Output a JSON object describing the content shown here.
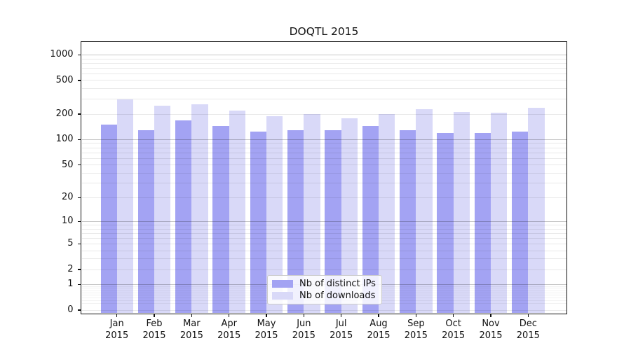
{
  "chart_data": {
    "type": "bar",
    "title": "DOQTL 2015",
    "categories": [
      "Jan",
      "Feb",
      "Mar",
      "Apr",
      "May",
      "Jun",
      "Jul",
      "Aug",
      "Sep",
      "Oct",
      "Nov",
      "Dec"
    ],
    "category_year": "2015",
    "series": [
      {
        "name": "Nb of distinct IPs",
        "color": "#a3a3f3",
        "values": [
          150,
          130,
          168,
          145,
          125,
          130,
          130,
          145,
          130,
          120,
          119,
          125
        ]
      },
      {
        "name": "Nb of downloads",
        "color": "#d9d9f8",
        "values": [
          300,
          250,
          260,
          220,
          190,
          200,
          178,
          200,
          230,
          212,
          208,
          237
        ]
      }
    ],
    "yscale": "log1p",
    "ylim": [
      0,
      1400
    ],
    "yticks": [
      0,
      1,
      2,
      5,
      10,
      20,
      50,
      100,
      200,
      500,
      1000
    ],
    "grid": true,
    "legend_position": "lower center",
    "colors": {
      "grid_major": "#c6c6c6",
      "grid_minor": "#e9e9e9",
      "grid_sub1": "#f2f2f2",
      "frame": "#111111",
      "text": "#111111"
    }
  }
}
